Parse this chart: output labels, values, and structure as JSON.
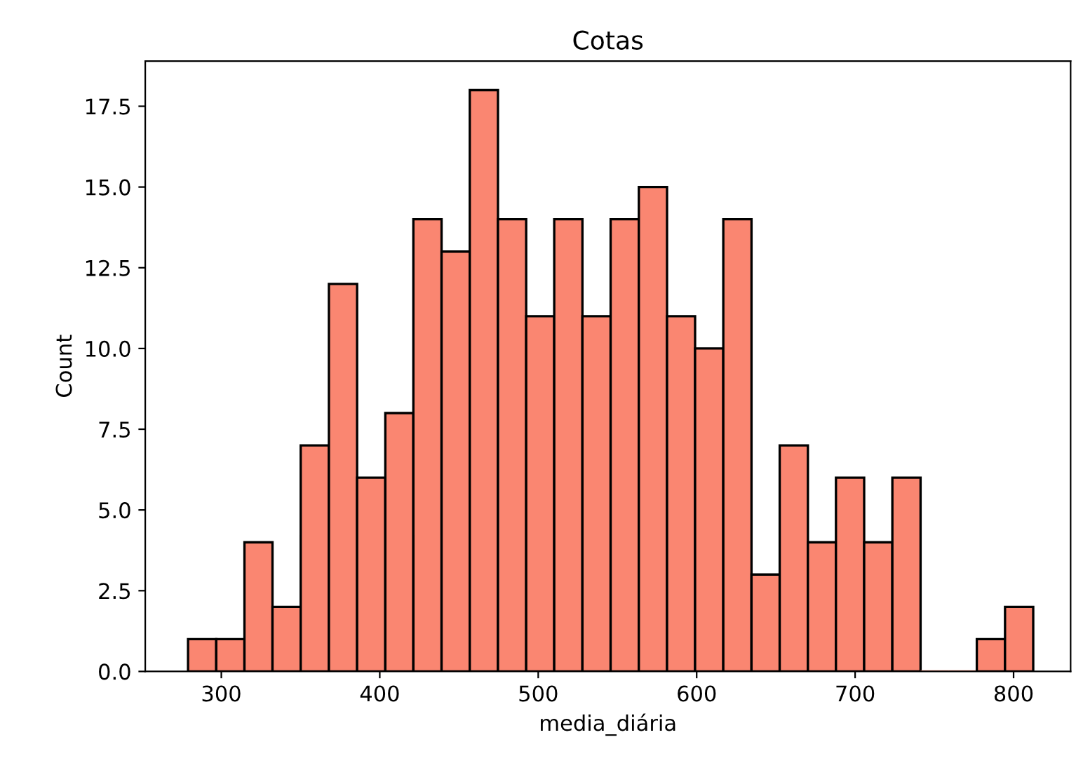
{
  "chart_data": {
    "type": "histogram",
    "title": "Cotas",
    "xlabel": "media_diária",
    "ylabel": "Count",
    "bins": [
      279.0,
      296.8,
      314.6,
      332.3,
      350.1,
      367.9,
      385.7,
      403.5,
      421.2,
      439.0,
      456.8,
      474.6,
      492.4,
      510.1,
      527.9,
      545.7,
      563.5,
      581.3,
      599.0,
      616.8,
      634.6,
      652.4,
      670.2,
      687.9,
      705.7,
      723.5,
      741.3,
      759.1,
      776.8,
      794.6,
      812.4
    ],
    "values": [
      1,
      1,
      4,
      2,
      7,
      12,
      6,
      8,
      14,
      13,
      18,
      14,
      11,
      14,
      11,
      14,
      15,
      11,
      10,
      14,
      3,
      7,
      4,
      6,
      4,
      6,
      0,
      0,
      1,
      2
    ],
    "color": "#fa8671",
    "xlim": [
      252,
      836
    ],
    "ylim": [
      0,
      18.9
    ],
    "xticks": [
      300,
      400,
      500,
      600,
      700,
      800
    ],
    "yticks": [
      {
        "value": 0,
        "label": "0.0"
      },
      2.5,
      {
        "value": 5,
        "label": "5.0"
      },
      7.5,
      {
        "value": 10,
        "label": "10.0"
      },
      12.5,
      {
        "value": 15,
        "label": "15.0"
      },
      17.5
    ],
    "grid": false
  }
}
